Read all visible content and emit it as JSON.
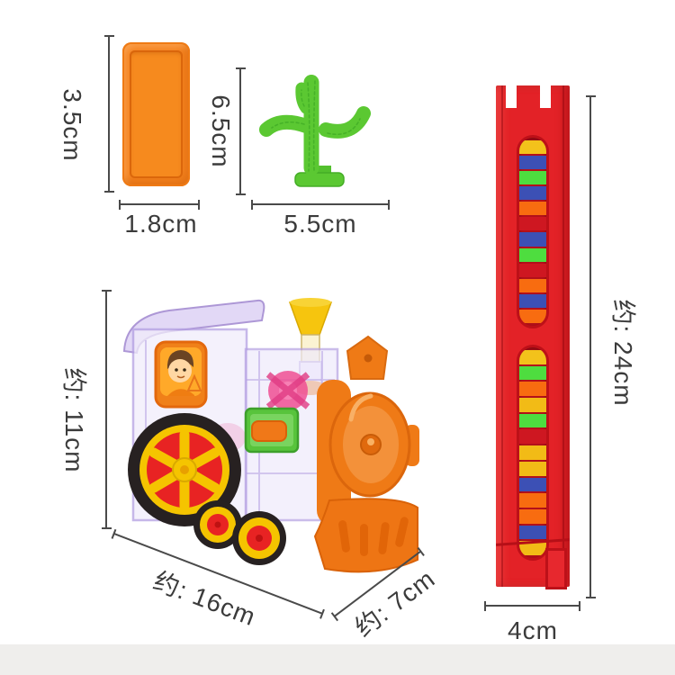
{
  "page": {
    "background": "#ffffff",
    "floor_color": "#efeeec"
  },
  "measurements": {
    "domino_height": "3.5cm",
    "domino_width": "1.8cm",
    "cactus_height": "6.5cm",
    "cactus_width": "5.5cm",
    "train_height": "约: 11cm",
    "train_length": "约: 16cm",
    "train_depth": "约: 7cm",
    "track_height": "约: 24cm",
    "track_width": "4cm"
  },
  "items": {
    "domino": {
      "label": "orange domino block",
      "color": "#f5821f"
    },
    "cactus": {
      "label": "green cactus piece",
      "color": "#5bc832"
    },
    "train": {
      "label": "transparent domino train",
      "body_color": "#efeafc",
      "boiler_color": "#ef7a16",
      "wheel_color": "#f5c400",
      "wheel_hub_color": "#e82323"
    },
    "track": {
      "label": "red domino loading rail",
      "color": "#e32227",
      "window1_stripes": [
        "#f3c21b",
        "#3c50b5",
        "#4edd3f",
        "#3c50b5",
        "#f86c10",
        "#ce1721",
        "#3c50b5",
        "#4edd3f",
        "#ce1721",
        "#f86c10",
        "#3c50b5",
        "#f86c10"
      ],
      "window2_stripes": [
        "#f3c21b",
        "#4edd3f",
        "#f86c10",
        "#f2bb16",
        "#4edd3f",
        "#ce1721",
        "#f2bb16",
        "#f2bb16",
        "#3c50b5",
        "#f86c10",
        "#f86c10",
        "#3c50b5",
        "#f2bb16"
      ]
    }
  }
}
